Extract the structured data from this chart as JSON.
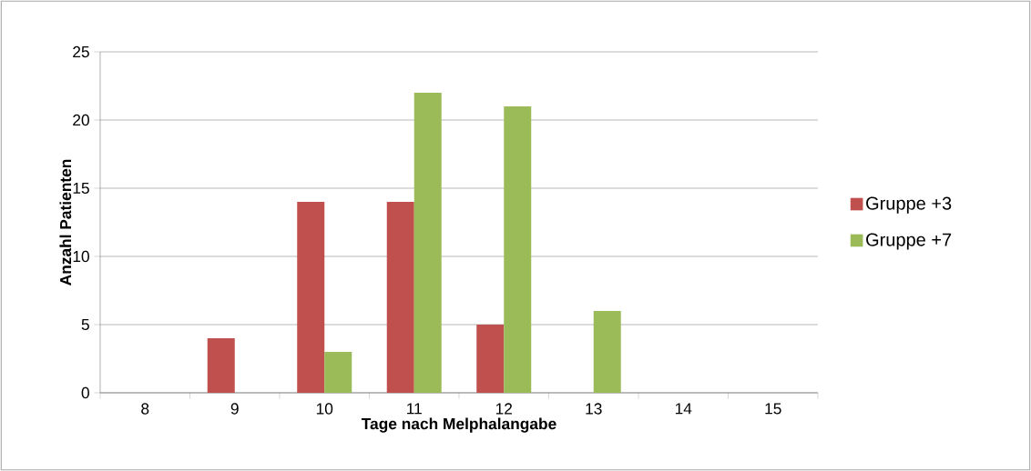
{
  "chart_data": {
    "type": "bar",
    "xlabel": "Tage nach Melphalangabe",
    "ylabel": "Anzahl Patienten",
    "categories": [
      "8",
      "9",
      "10",
      "11",
      "12",
      "13",
      "14",
      "15"
    ],
    "series": [
      {
        "name": "Gruppe +3",
        "color": "#c0504d",
        "values": [
          0,
          4,
          14,
          14,
          5,
          0,
          0,
          0
        ]
      },
      {
        "name": "Gruppe +7",
        "color": "#9bbb59",
        "values": [
          0,
          0,
          3,
          22,
          21,
          6,
          0,
          0
        ]
      }
    ],
    "ylim": [
      0,
      25
    ],
    "yticks": [
      0,
      5,
      10,
      15,
      20,
      25
    ],
    "grid": "y",
    "legend": "right"
  }
}
